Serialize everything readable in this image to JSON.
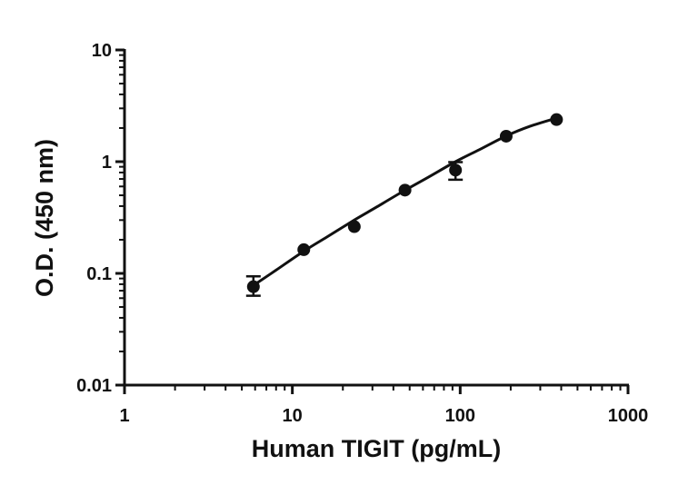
{
  "chart_data": {
    "type": "scatter",
    "xlabel": "Human TIGIT (pg/mL)",
    "ylabel": "O.D. (450 nm)",
    "x_scale": "log",
    "y_scale": "log",
    "xlim": [
      1,
      1000
    ],
    "ylim": [
      0.01,
      10
    ],
    "x_ticks": [
      {
        "value": 1,
        "label": "1"
      },
      {
        "value": 10,
        "label": "10"
      },
      {
        "value": 100,
        "label": "100"
      },
      {
        "value": 1000,
        "label": "1000"
      }
    ],
    "y_ticks": [
      {
        "value": 0.01,
        "label": "0.01"
      },
      {
        "value": 0.1,
        "label": "0.1"
      },
      {
        "value": 1,
        "label": "1"
      },
      {
        "value": 10,
        "label": "10"
      }
    ],
    "grid": false,
    "series": [
      {
        "points": [
          {
            "x": 5.86,
            "y": 0.076,
            "y_err_low": 0.063,
            "y_err_high": 0.094
          },
          {
            "x": 11.7,
            "y": 0.163
          },
          {
            "x": 23.4,
            "y": 0.262
          },
          {
            "x": 46.9,
            "y": 0.556
          },
          {
            "x": 93.8,
            "y": 0.84,
            "y_err_low": 0.69,
            "y_err_high": 0.99
          },
          {
            "x": 188,
            "y": 1.69
          },
          {
            "x": 375,
            "y": 2.38
          }
        ],
        "marker_color": "#111111"
      }
    ],
    "fit_curve": {
      "x": [
        5.86,
        8,
        11.7,
        16,
        23.4,
        32,
        46.9,
        65,
        93.8,
        130,
        188,
        260,
        375
      ],
      "y": [
        0.078,
        0.107,
        0.158,
        0.211,
        0.3,
        0.395,
        0.555,
        0.73,
        1.0,
        1.28,
        1.7,
        2.07,
        2.45
      ]
    }
  }
}
